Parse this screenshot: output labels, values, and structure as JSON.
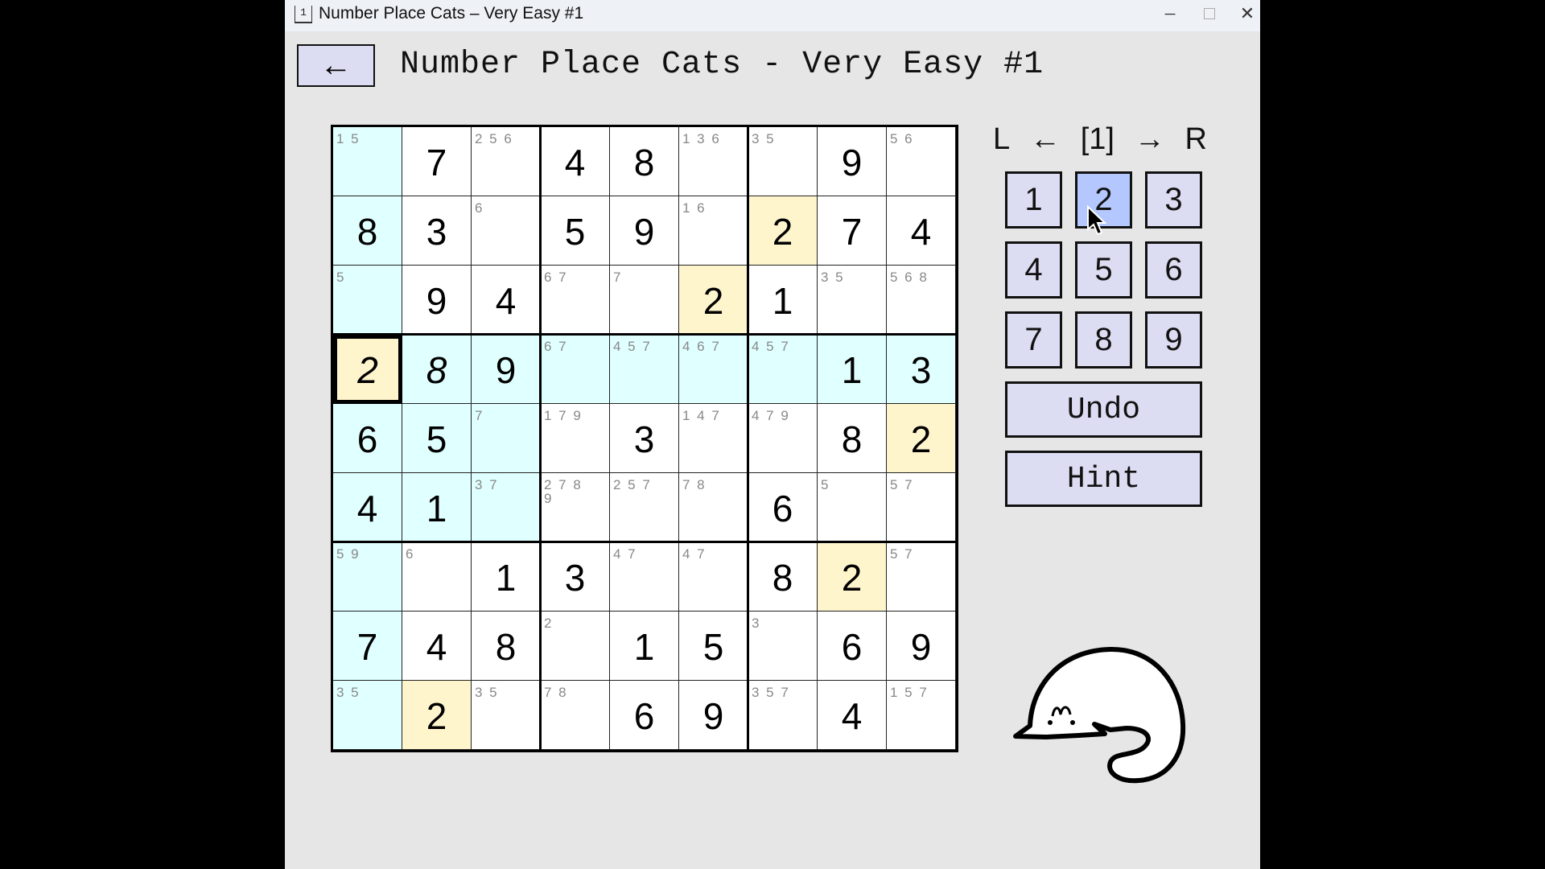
{
  "window": {
    "title": "Number Place Cats – Very Easy #1",
    "app_icon": "1",
    "minimize_icon": "minimize-icon",
    "maximize_icon": "maximize-icon",
    "close_icon": "close-icon"
  },
  "header": {
    "back_icon": "arrow-left-icon",
    "back_label": "←",
    "title": "Number Place Cats - Very Easy #1"
  },
  "board": {
    "selected": {
      "row": 4,
      "col": 1
    },
    "highlight_number": "2",
    "colors": {
      "related": "#e0ffff",
      "same_number": "#fff5cc"
    },
    "rows": [
      [
        {
          "c": "1 5"
        },
        {
          "v": "7"
        },
        {
          "c": "2 5 6"
        },
        {
          "v": "4"
        },
        {
          "v": "8"
        },
        {
          "c": "1 3 6"
        },
        {
          "c": "3 5"
        },
        {
          "v": "9"
        },
        {
          "c": "5 6"
        }
      ],
      [
        {
          "v": "8"
        },
        {
          "v": "3"
        },
        {
          "c": "6"
        },
        {
          "v": "5"
        },
        {
          "v": "9"
        },
        {
          "c": "1 6"
        },
        {
          "v": "2"
        },
        {
          "v": "7"
        },
        {
          "v": "4"
        }
      ],
      [
        {
          "c": "5"
        },
        {
          "v": "9"
        },
        {
          "v": "4"
        },
        {
          "c": "6 7"
        },
        {
          "c": "7"
        },
        {
          "v": "2"
        },
        {
          "v": "1"
        },
        {
          "c": "3 5"
        },
        {
          "c": "5 6 8"
        }
      ],
      [
        {
          "v": "2",
          "user": true
        },
        {
          "v": "8",
          "user": true
        },
        {
          "v": "9"
        },
        {
          "c": "6 7"
        },
        {
          "c": "4 5 7"
        },
        {
          "c": "4 6 7"
        },
        {
          "c": "4 5 7"
        },
        {
          "v": "1"
        },
        {
          "v": "3"
        }
      ],
      [
        {
          "v": "6"
        },
        {
          "v": "5"
        },
        {
          "c": "7"
        },
        {
          "c": "1 7 9"
        },
        {
          "v": "3"
        },
        {
          "c": "1 4 7"
        },
        {
          "c": "4 7 9"
        },
        {
          "v": "8"
        },
        {
          "v": "2"
        }
      ],
      [
        {
          "v": "4"
        },
        {
          "v": "1"
        },
        {
          "c": "3 7"
        },
        {
          "c": "2 7 8 9"
        },
        {
          "c": "2 5 7"
        },
        {
          "c": "7 8"
        },
        {
          "v": "6"
        },
        {
          "c": "5"
        },
        {
          "c": "5 7"
        }
      ],
      [
        {
          "c": "5 9"
        },
        {
          "c": "6"
        },
        {
          "v": "1"
        },
        {
          "v": "3"
        },
        {
          "c": "4 7"
        },
        {
          "c": "4 7"
        },
        {
          "v": "8"
        },
        {
          "v": "2"
        },
        {
          "c": "5 7"
        }
      ],
      [
        {
          "v": "7"
        },
        {
          "v": "4"
        },
        {
          "v": "8"
        },
        {
          "c": "2"
        },
        {
          "v": "1"
        },
        {
          "v": "5"
        },
        {
          "c": "3"
        },
        {
          "v": "6"
        },
        {
          "v": "9"
        }
      ],
      [
        {
          "c": "3 5"
        },
        {
          "v": "2"
        },
        {
          "c": "3 5"
        },
        {
          "c": "7 8"
        },
        {
          "v": "6"
        },
        {
          "v": "9"
        },
        {
          "c": "3 5 7"
        },
        {
          "v": "4"
        },
        {
          "c": "1 5 7"
        }
      ]
    ]
  },
  "panel": {
    "hand": {
      "left": "L",
      "left_arrow": "←",
      "current": "[1]",
      "right_arrow": "→",
      "right": "R"
    },
    "numbers": [
      "1",
      "2",
      "3",
      "4",
      "5",
      "6",
      "7",
      "8",
      "9"
    ],
    "active_number": "2",
    "undo_label": "Undo",
    "hint_label": "Hint",
    "mascot": "sleeping-cat"
  }
}
